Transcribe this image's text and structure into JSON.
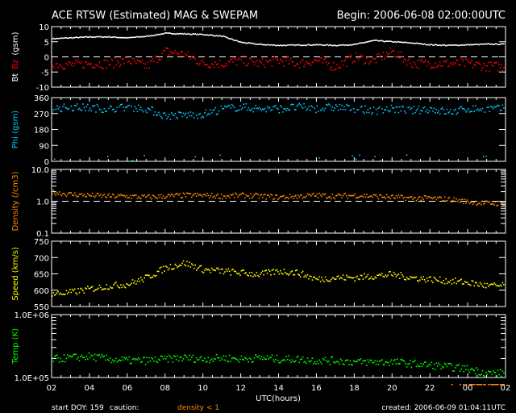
{
  "header": {
    "title": "ACE RTSW (Estimated) MAG & SWEPAM",
    "begin": "Begin: 2006-06-08 02:00:00UTC"
  },
  "footer": {
    "start_doy": "start DOY: 159",
    "caution": "caution:",
    "caution_note": "density < 1",
    "created": "created: 2006-06-09 01:04:11UTC",
    "xlabel": "UTC(hours)"
  },
  "colors": {
    "bt": "#ffffff",
    "bz": "#ff0000",
    "phi": "#00c8ff",
    "density": "#ff8c00",
    "speed": "#ffff00",
    "temp": "#00ff00"
  },
  "chart_data": [
    {
      "type": "scatter",
      "name": "mag",
      "ylabel_parts": [
        "Bt",
        "Bz",
        "(gsm)"
      ],
      "ylim": [
        -10,
        10
      ],
      "yticks": [
        "10",
        "5",
        "0",
        "-5",
        "-10"
      ],
      "ytick_values": [
        10,
        5,
        0,
        -5,
        -10
      ],
      "dashed_at": 0,
      "x_hours_since_start": [
        0,
        1,
        2,
        3,
        4,
        5,
        6,
        7,
        8,
        9,
        10,
        11,
        12,
        13,
        14,
        15,
        16,
        17,
        18,
        19,
        20,
        21,
        22,
        23
      ],
      "series": [
        {
          "name": "Bt",
          "color_key": "bt",
          "values": [
            6.2,
            6.5,
            6.8,
            6.8,
            6.5,
            7.0,
            8.0,
            7.8,
            7.6,
            7.0,
            5.0,
            4.3,
            4.0,
            4.1,
            4.2,
            4.0,
            4.3,
            5.6,
            5.2,
            4.8,
            4.2,
            4.0,
            4.2,
            4.4
          ]
        },
        {
          "name": "Bz",
          "color_key": "bz",
          "values": [
            -2,
            -2.5,
            -2,
            -2,
            -1,
            -3,
            2,
            1,
            -2,
            -2,
            -1,
            -2,
            -1,
            -2,
            -1,
            -3,
            0,
            -1,
            2,
            -2,
            -2,
            -2,
            -2,
            -3
          ]
        }
      ]
    },
    {
      "type": "scatter",
      "name": "phi",
      "ylabel_parts": [
        "Phi (gsm)"
      ],
      "ylim": [
        0,
        360
      ],
      "yticks": [
        "360",
        "270",
        "180",
        "90",
        "0"
      ],
      "ytick_values": [
        360,
        270,
        180,
        90,
        0
      ],
      "series": [
        {
          "name": "Phi",
          "color_key": "phi",
          "values": [
            300,
            310,
            305,
            300,
            310,
            300,
            260,
            265,
            270,
            300,
            310,
            300,
            300,
            310,
            300,
            310,
            300,
            290,
            300,
            290,
            300,
            280,
            300,
            300
          ]
        }
      ]
    },
    {
      "type": "scatter",
      "name": "density",
      "scale": "log",
      "ylabel_parts": [
        "Density (/cm3)"
      ],
      "ylim": [
        0.1,
        10
      ],
      "yticks": [
        "10.0",
        "1.0",
        "0.1"
      ],
      "ytick_values": [
        10,
        1,
        0.1
      ],
      "dashed_at": 1,
      "series": [
        {
          "name": "Density",
          "color_key": "density",
          "values": [
            2.0,
            1.7,
            1.6,
            1.5,
            1.5,
            1.4,
            1.5,
            1.6,
            1.6,
            1.5,
            1.6,
            1.5,
            1.4,
            1.5,
            1.6,
            1.5,
            1.6,
            1.5,
            1.4,
            1.3,
            1.3,
            1.2,
            1.0,
            0.9
          ]
        }
      ]
    },
    {
      "type": "scatter",
      "name": "speed",
      "ylabel_parts": [
        "Speed (km/s)"
      ],
      "ylim": [
        550,
        750
      ],
      "yticks": [
        "750",
        "700",
        "650",
        "600",
        "550"
      ],
      "ytick_values": [
        750,
        700,
        650,
        600,
        550
      ],
      "series": [
        {
          "name": "Speed",
          "color_key": "speed",
          "values": [
            590,
            595,
            605,
            615,
            620,
            640,
            670,
            685,
            665,
            660,
            655,
            650,
            660,
            655,
            635,
            640,
            640,
            645,
            650,
            640,
            635,
            630,
            625,
            615
          ]
        }
      ]
    },
    {
      "type": "scatter",
      "name": "temp",
      "scale": "log",
      "ylabel_parts": [
        "Temp (K)"
      ],
      "ylim": [
        100000,
        1000000
      ],
      "yticks": [
        "1.0E+06",
        "1.0E+05"
      ],
      "ytick_values": [
        1000000,
        100000
      ],
      "series": [
        {
          "name": "Temp",
          "color_key": "temp",
          "values": [
            200000,
            210000,
            220000,
            200000,
            190000,
            190000,
            200000,
            210000,
            200000,
            210000,
            200000,
            210000,
            200000,
            200000,
            190000,
            190000,
            180000,
            180000,
            180000,
            170000,
            160000,
            150000,
            140000,
            120000
          ]
        }
      ]
    }
  ],
  "xticks": [
    "02",
    "04",
    "06",
    "08",
    "10",
    "12",
    "14",
    "16",
    "18",
    "20",
    "22",
    "00",
    "02"
  ],
  "xrange_hours": 24
}
